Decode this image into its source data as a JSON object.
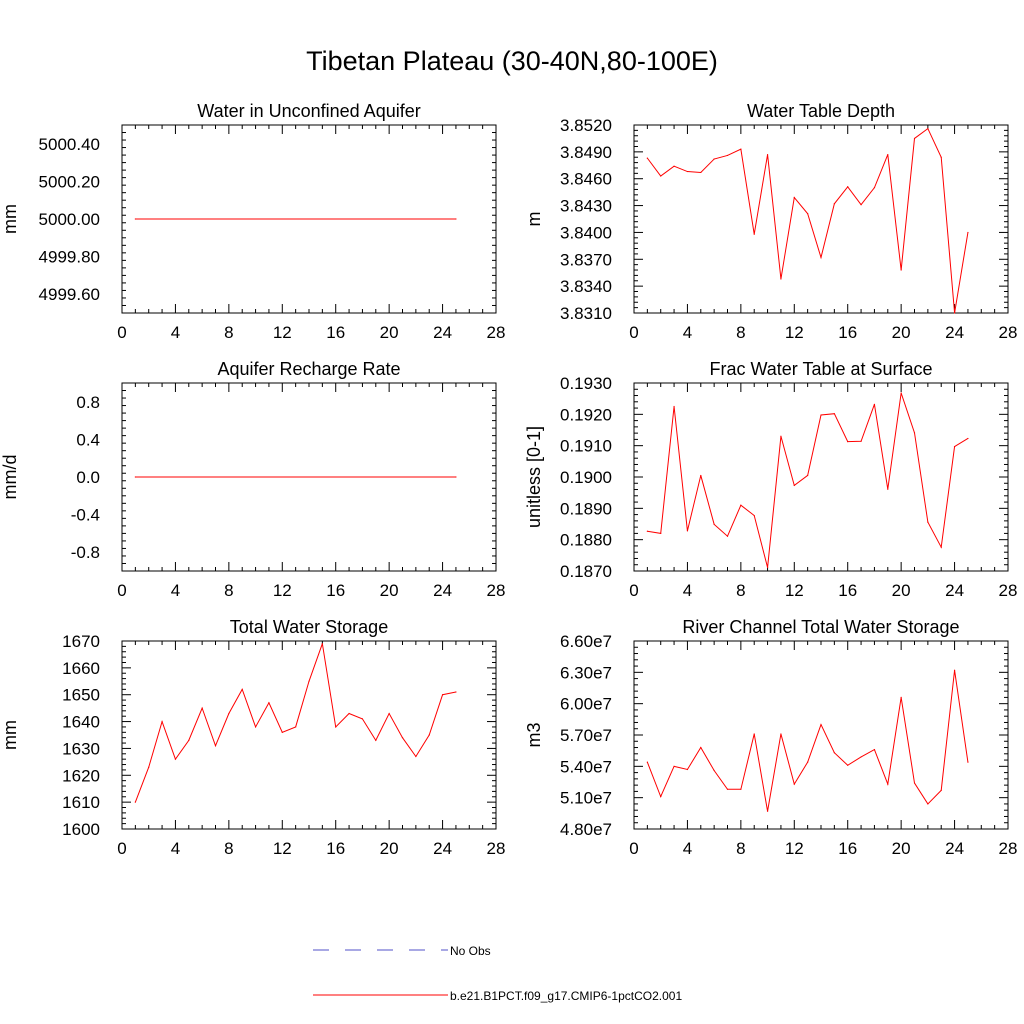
{
  "title": "Tibetan Plateau (30-40N,80-100E)",
  "colors": {
    "model": "#ff0000",
    "obs": "#5050c8"
  },
  "legend": {
    "obs_label": "No Obs",
    "model_label": "b.e21.B1PCT.f09_g17.CMIP6-1pctCO2.001"
  },
  "chart_data": [
    {
      "type": "line",
      "title": "Water in Unconfined Aquifer",
      "ylabel": "mm",
      "xlim": [
        0,
        28
      ],
      "ylim": [
        4999.5,
        5000.5
      ],
      "xticks": [
        0,
        4,
        8,
        12,
        16,
        20,
        24,
        28
      ],
      "yticks": [
        4999.6,
        4999.8,
        5000.0,
        5000.2,
        5000.4
      ],
      "ytick_labels": [
        "4999.60",
        "4999.80",
        "5000.00",
        "5000.20",
        "5000.40"
      ],
      "x": [
        1,
        25
      ],
      "series": [
        {
          "values": [
            5000.0,
            5000.0
          ]
        }
      ]
    },
    {
      "type": "line",
      "title": "Water Table Depth",
      "ylabel": "m",
      "xlim": [
        0,
        28
      ],
      "ylim": [
        3.831,
        3.852
      ],
      "xticks": [
        0,
        4,
        8,
        12,
        16,
        20,
        24,
        28
      ],
      "yticks": [
        3.831,
        3.834,
        3.837,
        3.84,
        3.843,
        3.846,
        3.849,
        3.852
      ],
      "ytick_labels": [
        "3.8310",
        "3.8340",
        "3.8370",
        "3.8400",
        "3.8430",
        "3.8460",
        "3.8490",
        "3.8520"
      ],
      "x": [
        1,
        2,
        3,
        4,
        5,
        6,
        7,
        8,
        9,
        10,
        11,
        12,
        13,
        14,
        15,
        16,
        17,
        18,
        19,
        20,
        21,
        22,
        23,
        24,
        25
      ],
      "series": [
        {
          "values": [
            3.8483,
            3.8463,
            3.8474,
            3.8468,
            3.8467,
            3.8482,
            3.8486,
            3.8493,
            3.8398,
            3.8487,
            3.8348,
            3.8439,
            3.8421,
            3.8372,
            3.8432,
            3.8451,
            3.8431,
            3.845,
            3.8487,
            3.8358,
            3.8505,
            3.8516,
            3.8484,
            3.831,
            3.84
          ]
        }
      ]
    },
    {
      "type": "line",
      "title": "Aquifer Recharge Rate",
      "ylabel": "mm/d",
      "xlim": [
        0,
        28
      ],
      "ylim": [
        -1.0,
        1.0
      ],
      "xticks": [
        0,
        4,
        8,
        12,
        16,
        20,
        24,
        28
      ],
      "yticks": [
        -0.8,
        -0.4,
        0.0,
        0.4,
        0.8
      ],
      "ytick_labels": [
        "-0.8",
        "-0.4",
        "0.0",
        "0.4",
        "0.8"
      ],
      "x": [
        1,
        25
      ],
      "series": [
        {
          "values": [
            0.0,
            0.0
          ]
        }
      ]
    },
    {
      "type": "line",
      "title": "Frac Water Table at Surface",
      "ylabel": "unitless [0-1]",
      "xlim": [
        0,
        28
      ],
      "ylim": [
        0.187,
        0.193
      ],
      "xticks": [
        0,
        4,
        8,
        12,
        16,
        20,
        24,
        28
      ],
      "yticks": [
        0.187,
        0.188,
        0.189,
        0.19,
        0.191,
        0.192,
        0.193
      ],
      "ytick_labels": [
        "0.1870",
        "0.1880",
        "0.1890",
        "0.1900",
        "0.1910",
        "0.1920",
        "0.1930"
      ],
      "x": [
        1,
        2,
        3,
        4,
        5,
        6,
        7,
        8,
        9,
        10,
        11,
        12,
        13,
        14,
        15,
        16,
        17,
        18,
        19,
        20,
        21,
        22,
        23,
        24,
        25
      ],
      "series": [
        {
          "values": [
            0.18827,
            0.1882,
            0.19225,
            0.18828,
            0.19005,
            0.18849,
            0.18811,
            0.1891,
            0.18877,
            0.18711,
            0.1913,
            0.18973,
            0.19005,
            0.19198,
            0.19202,
            0.19113,
            0.19114,
            0.19232,
            0.18961,
            0.19268,
            0.19141,
            0.18856,
            0.18776,
            0.19097,
            0.19123
          ]
        }
      ]
    },
    {
      "type": "line",
      "title": "Total Water Storage",
      "ylabel": "mm",
      "xlim": [
        0,
        28
      ],
      "ylim": [
        1600,
        1670
      ],
      "xticks": [
        0,
        4,
        8,
        12,
        16,
        20,
        24,
        28
      ],
      "yticks": [
        1600,
        1610,
        1620,
        1630,
        1640,
        1650,
        1660,
        1670
      ],
      "ytick_labels": [
        "1600",
        "1610",
        "1620",
        "1630",
        "1640",
        "1650",
        "1660",
        "1670"
      ],
      "x": [
        1,
        2,
        3,
        4,
        5,
        6,
        7,
        8,
        9,
        10,
        11,
        12,
        13,
        14,
        15,
        16,
        17,
        18,
        19,
        20,
        21,
        22,
        23,
        24,
        25
      ],
      "series": [
        {
          "values": [
            1610,
            1623,
            1640,
            1626,
            1633,
            1645,
            1631,
            1643,
            1652,
            1638,
            1647,
            1636,
            1638,
            1655,
            1669,
            1638,
            1643,
            1641,
            1633,
            1643,
            1634,
            1627,
            1635,
            1650,
            1651
          ]
        }
      ]
    },
    {
      "type": "line",
      "title": "River Channel Total Water Storage",
      "ylabel": "m3",
      "xlim": [
        0,
        28
      ],
      "ylim": [
        48000000,
        66000000
      ],
      "xticks": [
        0,
        4,
        8,
        12,
        16,
        20,
        24,
        28
      ],
      "yticks": [
        48000000,
        51000000,
        54000000,
        57000000,
        60000000,
        63000000,
        66000000
      ],
      "ytick_labels": [
        "4.80e7",
        "5.10e7",
        "5.40e7",
        "5.70e7",
        "6.00e7",
        "6.30e7",
        "6.60e7"
      ],
      "x": [
        1,
        2,
        3,
        4,
        5,
        6,
        7,
        8,
        9,
        10,
        11,
        12,
        13,
        14,
        15,
        16,
        17,
        18,
        19,
        20,
        21,
        22,
        23,
        24,
        25
      ],
      "series": [
        {
          "values": [
            54400000,
            51100000,
            54000000,
            53700000,
            55800000,
            53600000,
            51800000,
            51800000,
            57100000,
            49700000,
            57100000,
            52300000,
            54400000,
            58000000,
            55300000,
            54100000,
            54900000,
            55600000,
            52300000,
            60600000,
            52400000,
            50400000,
            51700000,
            63200000,
            54400000
          ]
        }
      ]
    }
  ]
}
